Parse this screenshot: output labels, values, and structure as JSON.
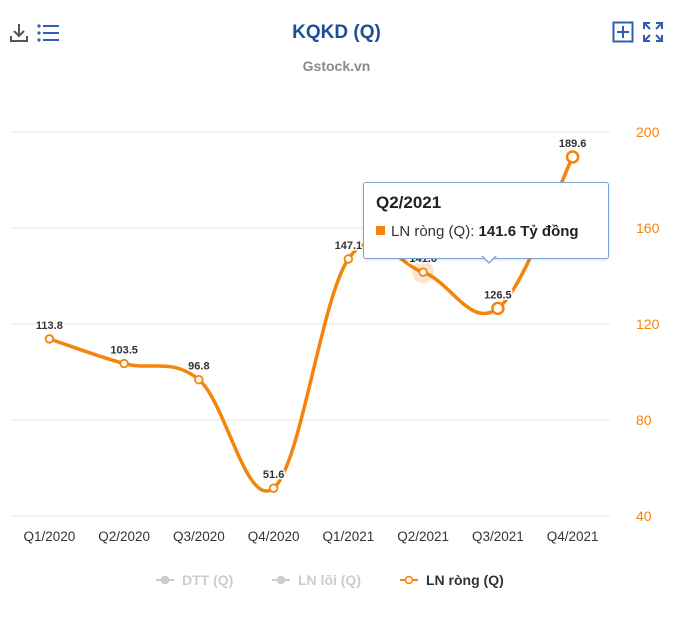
{
  "header": {
    "title": "KQKD (Q)",
    "subtitle": "Gstock.vn"
  },
  "toolbar": {
    "download_icon": "download-icon",
    "menu_icon": "list-icon",
    "add_icon": "plus-box-icon",
    "fullscreen_icon": "fullscreen-icon"
  },
  "tooltip": {
    "title": "Q2/2021",
    "series_label": "LN ròng (Q): ",
    "value_text": "141.6 Tỷ đồng"
  },
  "chart_data": {
    "type": "line",
    "categories": [
      "Q1/2020",
      "Q2/2020",
      "Q3/2020",
      "Q4/2020",
      "Q1/2021",
      "Q2/2021",
      "Q3/2021",
      "Q4/2021"
    ],
    "series": [
      {
        "name": "LN ròng (Q)",
        "values": [
          113.8,
          103.5,
          96.8,
          51.6,
          147.1,
          141.6,
          126.5,
          189.6
        ],
        "color": "#f5840c"
      }
    ],
    "legend": [
      {
        "name": "DTT (Q)",
        "active": false,
        "color": "#cccccc"
      },
      {
        "name": "LN lõi (Q)",
        "active": false,
        "color": "#cccccc"
      },
      {
        "name": "LN ròng (Q)",
        "active": true,
        "color": "#f5840c"
      }
    ],
    "y_ticks": [
      40,
      80,
      120,
      160,
      200
    ],
    "y_axis_position": "right",
    "ylim": [
      40,
      200
    ],
    "grid": true,
    "highlighted_point": 5,
    "legend_position": "bottom",
    "colors": {
      "tick": "#f5840c",
      "grid": "#e6e6e6",
      "label": "#333333"
    }
  }
}
